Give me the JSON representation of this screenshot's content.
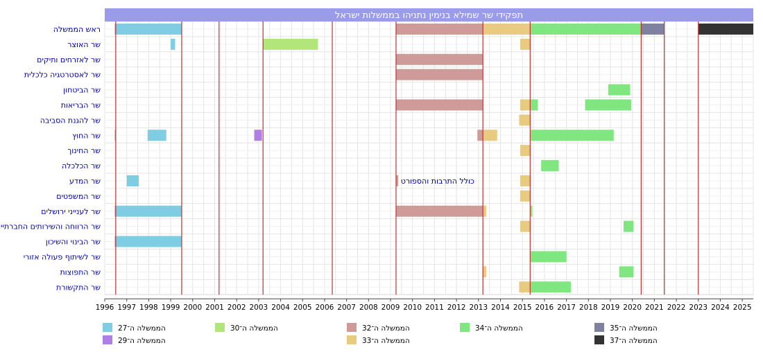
{
  "chart_data": {
    "type": "gantt",
    "title": "תפקידי שר שמילא בנימין נתניהו בממשלות ישראל",
    "x_range": [
      1996,
      2025.5
    ],
    "x_ticks": [
      1996,
      1997,
      1998,
      1999,
      2000,
      2001,
      2002,
      2003,
      2004,
      2005,
      2006,
      2007,
      2008,
      2009,
      2010,
      2011,
      2012,
      2013,
      2014,
      2015,
      2016,
      2017,
      2018,
      2019,
      2020,
      2021,
      2022,
      2023,
      2024,
      2025
    ],
    "grid": true,
    "government_change_lines": [
      1996.5,
      1999.5,
      2001.2,
      2003.2,
      2006.35,
      2009.25,
      2013.2,
      2015.35,
      2020.4,
      2021.45,
      2023.0
    ],
    "rows": [
      "ראש הממשלה",
      "שר האוצר",
      "שר לאזרחים ותיקים",
      "שר לאסטרטגיה כלכלית",
      "שר הביטחון",
      "שר הבריאות",
      "שר להגנת הסביבה",
      "שר החוץ",
      "שר החינוך",
      "שר הכלכלה",
      "שר המדע",
      "שר המשפטים",
      "שר לענייני ירושלים",
      "שר הרווחה והשירותים החברתיים",
      "שר הבינוי והשיכון",
      "שר לשיתוף פעולה אזורי",
      "שר התפוצות",
      "שר התקשורת"
    ],
    "bars": [
      {
        "row": 0,
        "start": 1996.45,
        "end": 1999.5,
        "gov": "g27"
      },
      {
        "row": 0,
        "start": 2009.25,
        "end": 2013.2,
        "gov": "g32"
      },
      {
        "row": 0,
        "start": 2013.2,
        "end": 2015.35,
        "gov": "g33"
      },
      {
        "row": 0,
        "start": 2015.35,
        "end": 2020.4,
        "gov": "g34"
      },
      {
        "row": 0,
        "start": 2020.4,
        "end": 2021.45,
        "gov": "g35"
      },
      {
        "row": 0,
        "start": 2023.0,
        "end": 2025.5,
        "gov": "g37"
      },
      {
        "row": 1,
        "start": 1999.0,
        "end": 1999.2,
        "gov": "g27"
      },
      {
        "row": 1,
        "start": 2003.2,
        "end": 2005.7,
        "gov": "g30"
      },
      {
        "row": 1,
        "start": 2014.9,
        "end": 2015.35,
        "gov": "g33"
      },
      {
        "row": 2,
        "start": 2009.25,
        "end": 2013.2,
        "gov": "g32"
      },
      {
        "row": 3,
        "start": 2009.25,
        "end": 2013.2,
        "gov": "g32"
      },
      {
        "row": 4,
        "start": 2018.9,
        "end": 2019.9,
        "gov": "g34"
      },
      {
        "row": 5,
        "start": 2009.25,
        "end": 2013.2,
        "gov": "g32"
      },
      {
        "row": 5,
        "start": 2014.9,
        "end": 2015.35,
        "gov": "g33"
      },
      {
        "row": 5,
        "start": 2015.35,
        "end": 2015.7,
        "gov": "g34"
      },
      {
        "row": 5,
        "start": 2017.85,
        "end": 2019.95,
        "gov": "g34"
      },
      {
        "row": 6,
        "start": 2014.85,
        "end": 2015.35,
        "gov": "g33"
      },
      {
        "row": 7,
        "start": 2015.35,
        "end": 2015.35,
        "gov": "g33"
      },
      {
        "row": 7,
        "start": 1996.45,
        "end": 1996.5,
        "gov": "g27"
      },
      {
        "row": 7,
        "start": 1997.95,
        "end": 1998.8,
        "gov": "g27"
      },
      {
        "row": 7,
        "start": 2002.8,
        "end": 2003.15,
        "gov": "g29"
      },
      {
        "row": 7,
        "start": 2012.95,
        "end": 2013.2,
        "gov": "g32"
      },
      {
        "row": 7,
        "start": 2013.2,
        "end": 2013.85,
        "gov": "g33"
      },
      {
        "row": 7,
        "start": 2015.35,
        "end": 2019.15,
        "gov": "g34"
      },
      {
        "row": 8,
        "start": 2014.9,
        "end": 2015.35,
        "gov": "g33"
      },
      {
        "row": 9,
        "start": 2015.85,
        "end": 2016.65,
        "gov": "g34"
      },
      {
        "row": 10,
        "start": 1997.0,
        "end": 1997.55,
        "gov": "g27"
      },
      {
        "row": 10,
        "start": 2009.25,
        "end": 2009.35,
        "gov": "g32"
      },
      {
        "row": 10,
        "start": 2014.9,
        "end": 2015.35,
        "gov": "g33"
      },
      {
        "row": 11,
        "start": 2014.9,
        "end": 2015.35,
        "gov": "g33"
      },
      {
        "row": 12,
        "start": 1996.45,
        "end": 1999.5,
        "gov": "g27"
      },
      {
        "row": 12,
        "start": 2009.25,
        "end": 2013.2,
        "gov": "g32"
      },
      {
        "row": 12,
        "start": 2013.2,
        "end": 2013.35,
        "gov": "g33"
      },
      {
        "row": 12,
        "start": 2015.35,
        "end": 2015.45,
        "gov": "g34"
      },
      {
        "row": 13,
        "start": 2014.9,
        "end": 2015.35,
        "gov": "g33"
      },
      {
        "row": 13,
        "start": 2019.6,
        "end": 2020.05,
        "gov": "g34"
      },
      {
        "row": 14,
        "start": 1996.45,
        "end": 1999.5,
        "gov": "g27"
      },
      {
        "row": 15,
        "start": 2015.35,
        "end": 2017.0,
        "gov": "g34"
      },
      {
        "row": 16,
        "start": 2013.2,
        "end": 2013.35,
        "gov": "g33"
      },
      {
        "row": 16,
        "start": 2019.4,
        "end": 2020.05,
        "gov": "g34"
      },
      {
        "row": 17,
        "start": 2014.85,
        "end": 2015.35,
        "gov": "g33"
      },
      {
        "row": 17,
        "start": 2015.35,
        "end": 2017.2,
        "gov": "g34"
      }
    ],
    "annotations": [
      {
        "row": 10,
        "x": 2009.4,
        "text": "כולל התרבות והספורט"
      }
    ],
    "legend": [
      {
        "key": "g27",
        "label": "הממשלה ה־27",
        "color": "#7fcde3"
      },
      {
        "key": "g29",
        "label": "הממשלה ה־29",
        "color": "#b07fe3"
      },
      {
        "key": "g30",
        "label": "הממשלה ה־30",
        "color": "#b3e67a"
      },
      {
        "key": "g32",
        "label": "הממשלה ה־32",
        "color": "#cf9b98"
      },
      {
        "key": "g33",
        "label": "הממשלה ה־33",
        "color": "#e8ca80"
      },
      {
        "key": "g34",
        "label": "הממשלה ה־34",
        "color": "#80e67f"
      },
      {
        "key": "g35",
        "label": "הממשלה ה־35",
        "color": "#8080a0"
      },
      {
        "key": "g37",
        "label": "הממשלה ה־37",
        "color": "#333333"
      }
    ],
    "legend_placement": "bottom",
    "colors": {
      "title_bar": "#9a9be9",
      "title_text": "#ffffff",
      "row_label": "#0000aa",
      "annotation_text": "#0000aa",
      "gov_line": "#c03030",
      "grid": "#e4e4e4"
    }
  }
}
